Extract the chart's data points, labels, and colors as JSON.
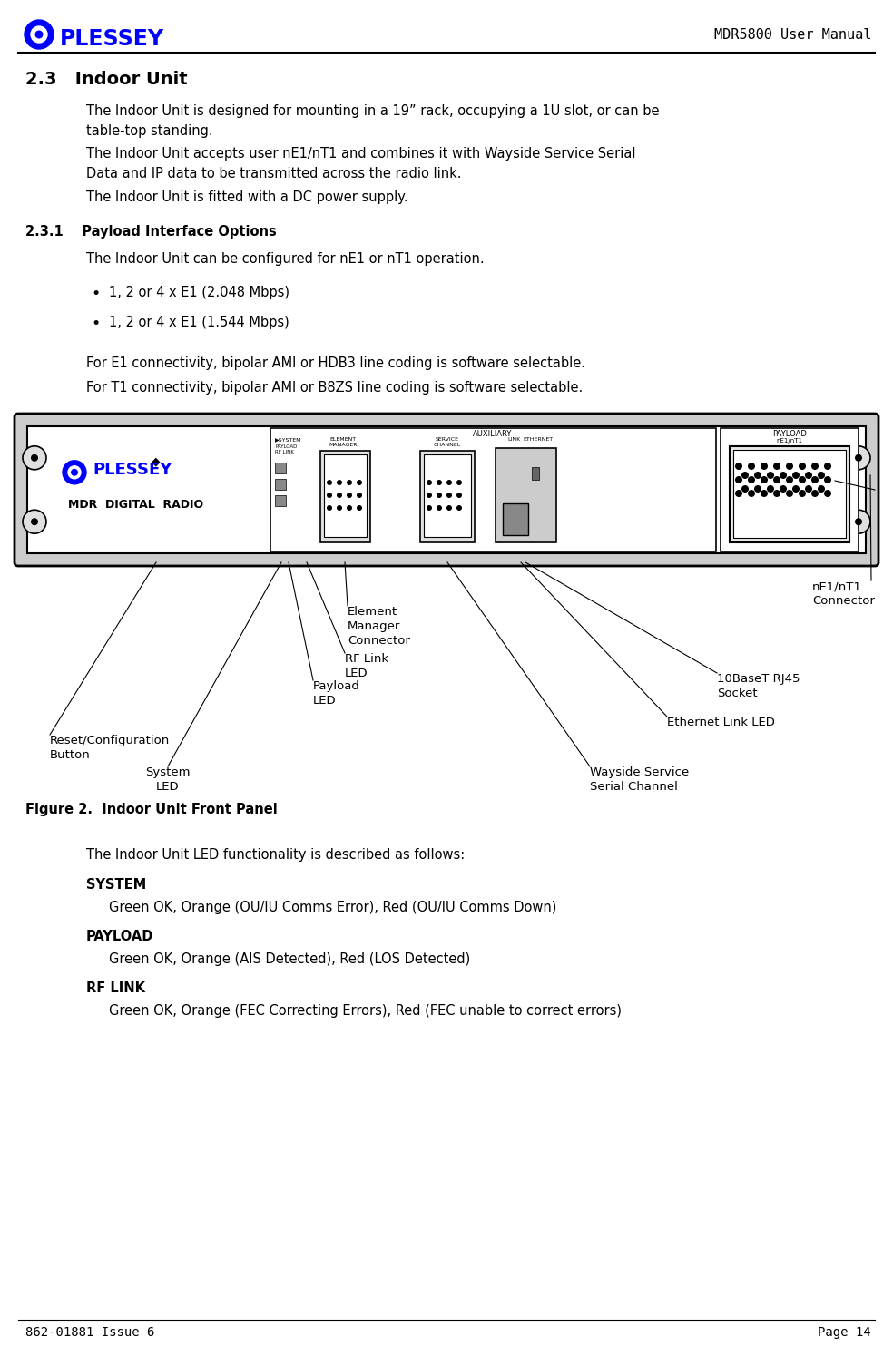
{
  "page_title": "MDR5800 User Manual",
  "footer_left": "862-01881 Issue 6",
  "footer_right": "Page 14",
  "logo_text": "PLESSEY",
  "logo_color": "#0000FF",
  "section_number": "2.3",
  "section_title": "Indoor Unit",
  "para1": "The Indoor Unit is designed for mounting in a 19” rack, occupying a 1U slot, or can be\ntable-top standing.",
  "para2": "The Indoor Unit accepts user nE1/nT1 and combines it with Wayside Service Serial\nData and IP data to be transmitted across the radio link.",
  "para3": "The Indoor Unit is fitted with a DC power supply.",
  "subsection_number": "2.3.1",
  "subsection_title": "Payload Interface Options",
  "sub_para1": "The Indoor Unit can be configured for nE1 or nT1 operation.",
  "bullet1": "1, 2 or 4 x E1 (2.048 Mbps)",
  "bullet2": "1, 2 or 4 x E1 (1.544 Mbps)",
  "para_e1": "For E1 connectivity, bipolar AMI or HDB3 line coding is software selectable.",
  "para_t1": "For T1 connectivity, bipolar AMI or B8ZS line coding is software selectable.",
  "figure_caption": "Figure 2.  Indoor Unit Front Panel",
  "label_element_manager": "Element\nManager\nConnector",
  "label_rf_link": "RF Link\nLED",
  "label_payload": "Payload\nLED",
  "label_reset": "Reset/Configuration\nButton",
  "label_system": "System\nLED",
  "label_ne1": "nE1/nT1\nConnector",
  "label_10base": "10BaseT RJ45\nSocket",
  "label_ethernet": "Ethernet Link LED",
  "label_wayside": "Wayside Service\nSerial Channel",
  "led_intro": "The Indoor Unit LED functionality is described as follows:",
  "led_title1": "SYSTEM",
  "led_text1": "Green OK, Orange (OU/IU Comms Error), Red (OU/IU Comms Down)",
  "led_title2": "PAYLOAD",
  "led_text2": "Green OK, Orange (AIS Detected), Red (LOS Detected)",
  "led_title3": "RF LINK",
  "led_text3": "Green OK, Orange (FEC Correcting Errors), Red (FEC unable to correct errors)",
  "bg_color": "#FFFFFF",
  "text_color": "#000000",
  "body_fontsize": 10.5,
  "section_fontsize": 14
}
